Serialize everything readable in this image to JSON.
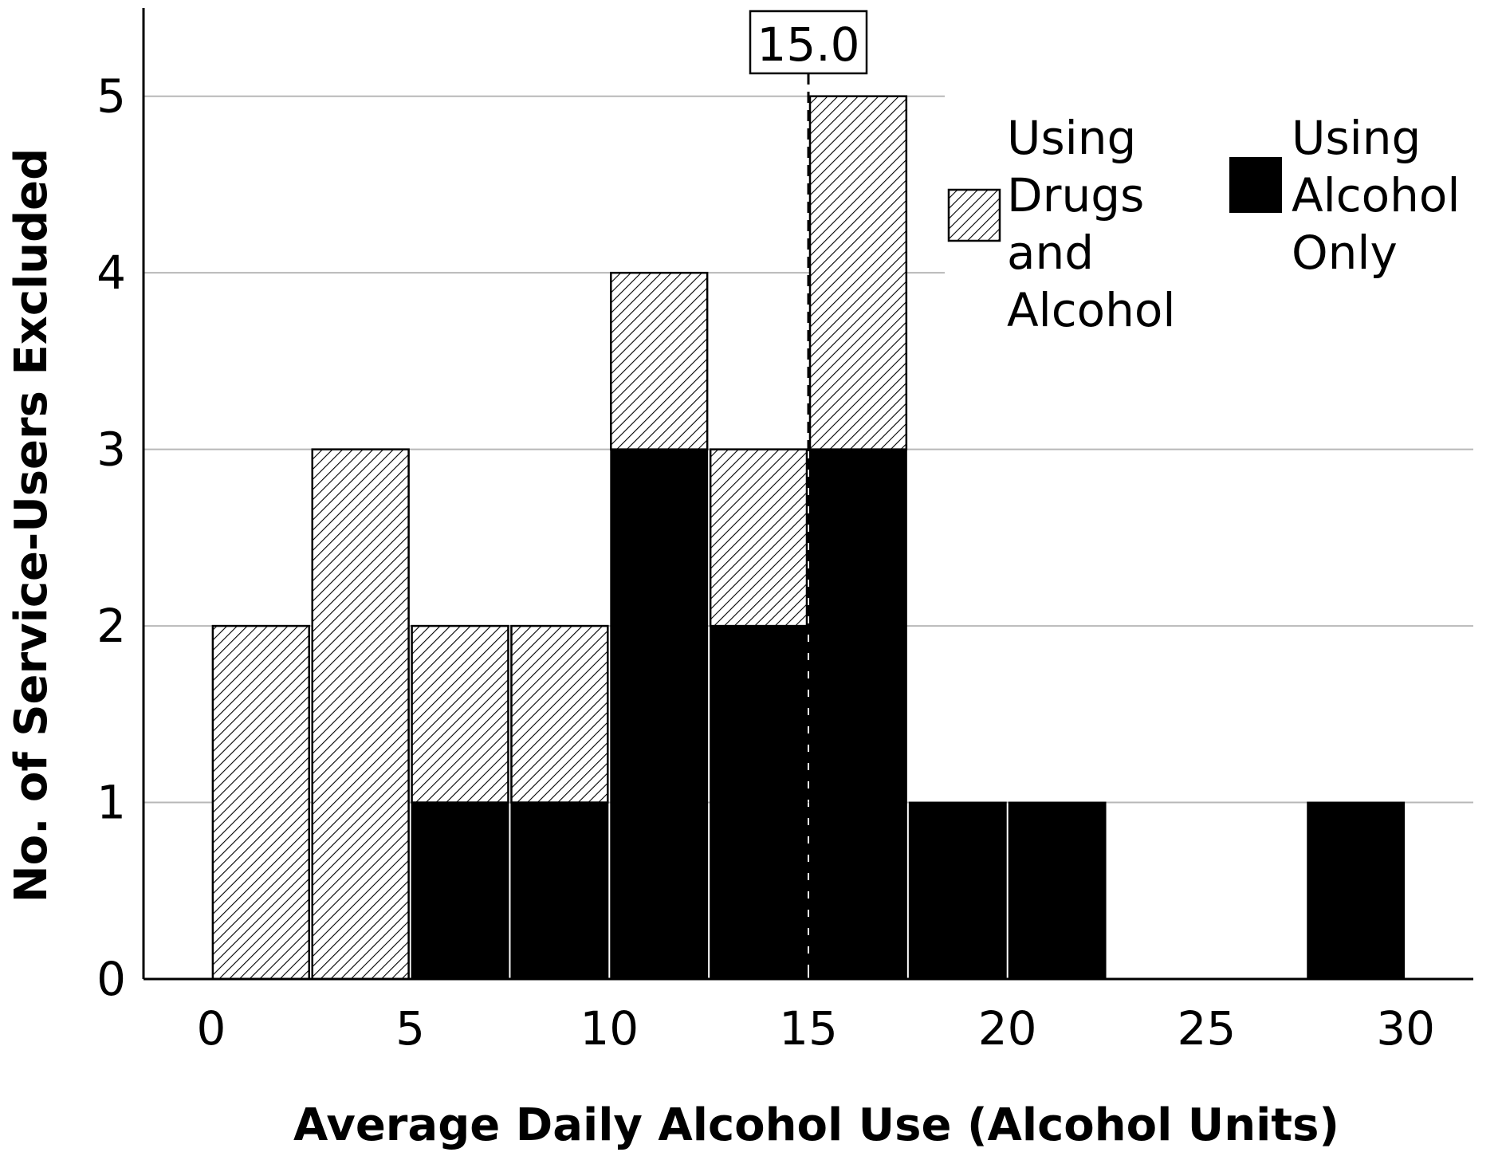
{
  "chart_data": {
    "type": "bar",
    "subtype": "stacked-histogram",
    "xlabel": "Average Daily Alcohol Use (Alcohol Units)",
    "ylabel": "No. of Service-Users Excluded",
    "xlim": [
      -1.7,
      31.7
    ],
    "ylim": [
      0,
      5.5
    ],
    "x_ticks": [
      "0",
      "5",
      "10",
      "15",
      "20",
      "25",
      "30"
    ],
    "y_ticks": [
      "0",
      "1",
      "2",
      "3",
      "4",
      "5"
    ],
    "grid": "horizontal",
    "bin_width": 2.5,
    "bins": [
      {
        "x0": 0,
        "x1": 2.5
      },
      {
        "x0": 2.5,
        "x1": 5
      },
      {
        "x0": 5,
        "x1": 7.5
      },
      {
        "x0": 7.5,
        "x1": 10
      },
      {
        "x0": 10,
        "x1": 12.5
      },
      {
        "x0": 12.5,
        "x1": 15
      },
      {
        "x0": 15,
        "x1": 17.5
      },
      {
        "x0": 17.5,
        "x1": 20
      },
      {
        "x0": 20,
        "x1": 22.5
      },
      {
        "x0": 22.5,
        "x1": 25
      },
      {
        "x0": 25,
        "x1": 27.5
      },
      {
        "x0": 27.5,
        "x1": 30
      }
    ],
    "series": [
      {
        "name": "Using Alcohol Only",
        "fill": "#000000",
        "values": [
          0,
          0,
          1,
          1,
          3,
          2,
          3,
          1,
          1,
          0,
          0,
          1
        ]
      },
      {
        "name": "Using Drugs and Alcohol",
        "fill": "hatched",
        "values": [
          2,
          3,
          1,
          1,
          1,
          1,
          2,
          0,
          0,
          0,
          0,
          0
        ]
      }
    ],
    "reference_line": {
      "x": 15.0,
      "label": "15.0",
      "style": "dashed"
    },
    "legend": {
      "placement": "top-right",
      "entries": [
        {
          "series": "Using Drugs and Alcohol",
          "lines": [
            "Using",
            "Drugs",
            "and",
            "Alcohol"
          ],
          "fill": "hatched"
        },
        {
          "series": "Using Alcohol Only",
          "lines": [
            "Using",
            "Alcohol",
            "Only"
          ],
          "fill": "#000000"
        }
      ]
    }
  }
}
